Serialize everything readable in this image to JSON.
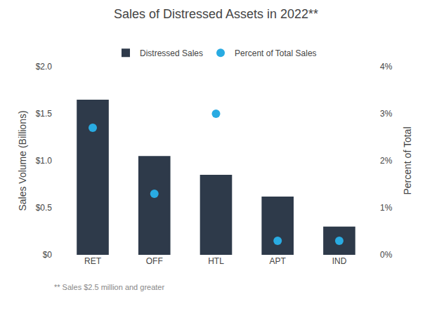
{
  "chart_data": {
    "type": "bar",
    "title": "Sales of Distressed Assets in 2022**",
    "categories": [
      "RET",
      "OFF",
      "HTL",
      "APT",
      "IND"
    ],
    "series": [
      {
        "name": "Distressed Sales",
        "type": "bar",
        "color": "#2e3a4a",
        "values": [
          1.65,
          1.05,
          0.85,
          0.62,
          0.3
        ]
      },
      {
        "name": "Percent of Total Sales",
        "type": "scatter",
        "marker": "circle",
        "color": "#29abe2",
        "axis": "y2",
        "values": [
          2.7,
          1.3,
          3.0,
          0.3,
          0.3
        ]
      }
    ],
    "ylabel": "Sales Volume (Billions)",
    "y2label": "Percent of Total",
    "ylim": [
      0,
      2.0
    ],
    "yticks": [
      {
        "value": 0,
        "label": "$0"
      },
      {
        "value": 0.5,
        "label": "$0.5"
      },
      {
        "value": 1.0,
        "label": "$1.0"
      },
      {
        "value": 1.5,
        "label": "$1.5"
      },
      {
        "value": 2.0,
        "label": "$2.0"
      }
    ],
    "y2lim": [
      0,
      4.0
    ],
    "y2ticks": [
      {
        "value": 0,
        "label": "0%"
      },
      {
        "value": 1,
        "label": "1%"
      },
      {
        "value": 2,
        "label": "2%"
      },
      {
        "value": 3,
        "label": "3%"
      },
      {
        "value": 4,
        "label": "4%"
      }
    ],
    "grid": false,
    "legend": "top",
    "annotations": [
      "** Sales $2.5 million and greater"
    ]
  }
}
